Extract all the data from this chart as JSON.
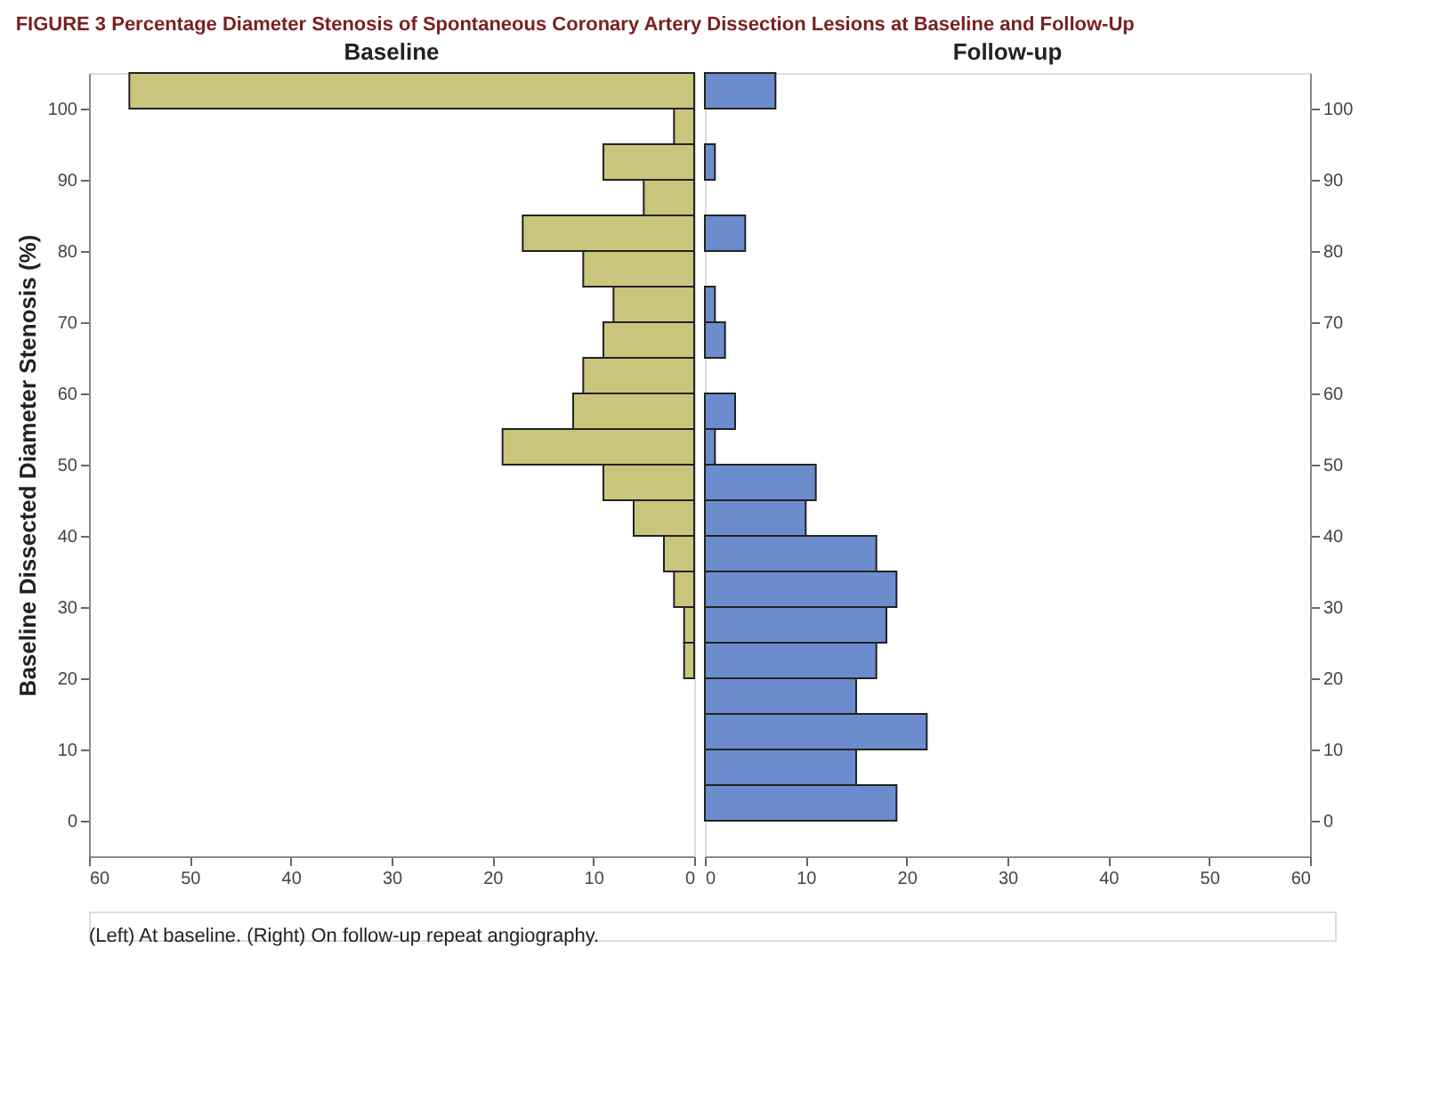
{
  "chart_data": [
    {
      "type": "histogram",
      "orientation": "horizontal",
      "title": "FIGURE 3 Percentage Diameter Stenosis of Spontaneous Coronary Artery Dissection Lesions at Baseline and Follow-Up",
      "subtitle": "Baseline",
      "ylabel": "Baseline Dissected Diameter Stenosis (%)",
      "bins": [
        0,
        5,
        10,
        15,
        20,
        25,
        30,
        35,
        40,
        45,
        50,
        55,
        60,
        65,
        70,
        75,
        80,
        85,
        90,
        95,
        100,
        105
      ],
      "values": [
        0,
        0,
        0,
        0,
        1,
        1,
        2,
        3,
        6,
        9,
        19,
        12,
        11,
        9,
        8,
        11,
        17,
        5,
        9,
        2,
        56
      ],
      "color": "#c9c57c",
      "xlim": [
        60,
        0
      ],
      "xticks": [
        60,
        50,
        40,
        30,
        20,
        10,
        0
      ],
      "ylim": [
        -5,
        105
      ],
      "yticks": [
        0,
        10,
        20,
        30,
        40,
        50,
        60,
        70,
        80,
        90,
        100
      ],
      "grid": false
    },
    {
      "type": "histogram",
      "orientation": "horizontal",
      "subtitle": "Follow-up",
      "bins": [
        0,
        5,
        10,
        15,
        20,
        25,
        30,
        35,
        40,
        45,
        50,
        55,
        60,
        65,
        70,
        75,
        80,
        85,
        90,
        95,
        100,
        105
      ],
      "values": [
        19,
        15,
        22,
        15,
        17,
        18,
        19,
        17,
        10,
        11,
        1,
        3,
        0,
        2,
        1,
        0,
        4,
        0,
        1,
        0,
        7
      ],
      "color": "#6c8dcd",
      "xlim": [
        0,
        60
      ],
      "xticks": [
        0,
        10,
        20,
        30,
        40,
        50,
        60
      ],
      "ylim": [
        -5,
        105
      ],
      "yticks": [
        0,
        10,
        20,
        30,
        40,
        50,
        60,
        70,
        80,
        90,
        100
      ],
      "grid": false,
      "annotations": [
        "(Left) At baseline. (Right) On follow-up repeat angiography."
      ]
    }
  ]
}
